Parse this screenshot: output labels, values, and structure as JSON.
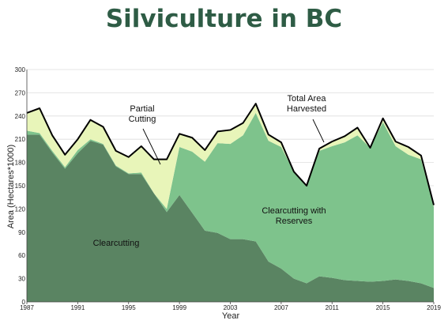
{
  "colors": {
    "title": "#2e5c45",
    "clearcutting": "#5a8462",
    "reserves": "#7ec38c",
    "partial": "#e8f5b9",
    "total_line": "#000000",
    "grid": "#dddddd"
  },
  "chart_data": {
    "type": "area",
    "title": "Silviculture in BC",
    "xlabel": "Year",
    "ylabel": "Area (Hectares*1000)",
    "xlim": [
      1987,
      2019
    ],
    "ylim": [
      0,
      300
    ],
    "xticks": [
      "1987",
      "1991",
      "1995",
      "1999",
      "2003",
      "2007",
      "2011",
      "2015",
      "2019"
    ],
    "yticks": [
      "0",
      "30",
      "60",
      "90",
      "120",
      "150",
      "180",
      "210",
      "240",
      "270",
      "300"
    ],
    "grid": true,
    "stacked": true,
    "x": [
      1987,
      1988,
      1989,
      1990,
      1991,
      1992,
      1993,
      1994,
      1995,
      1996,
      1997,
      1998,
      1999,
      2000,
      2001,
      2002,
      2003,
      2004,
      2005,
      2006,
      2007,
      2008,
      2009,
      2010,
      2011,
      2012,
      2013,
      2014,
      2015,
      2016,
      2017,
      2018,
      2019
    ],
    "series": [
      {
        "name": "Clearcutting",
        "values": [
          216,
          216,
          193,
          172,
          192,
          208,
          203,
          175,
          165,
          165,
          140,
          116,
          138,
          115,
          92,
          89,
          81,
          81,
          78,
          52,
          43,
          30,
          24,
          33,
          31,
          28,
          27,
          26,
          27,
          29,
          27,
          24,
          18
        ]
      },
      {
        "name": "Clearcutting with Reserves",
        "values": [
          5,
          2,
          2,
          2,
          4,
          2,
          1,
          1,
          1,
          2,
          0,
          4,
          62,
          79,
          89,
          116,
          123,
          134,
          166,
          156,
          157,
          138,
          125,
          162,
          170,
          178,
          188,
          173,
          205,
          172,
          163,
          160,
          105
        ]
      },
      {
        "name": "Partial Cutting",
        "values": [
          23,
          32,
          20,
          16,
          14,
          25,
          22,
          19,
          21,
          34,
          44,
          64,
          17,
          18,
          15,
          15,
          18,
          16,
          12,
          8,
          6,
          0,
          1,
          3,
          6,
          8,
          10,
          0,
          5,
          6,
          10,
          5,
          2
        ]
      }
    ],
    "total": {
      "name": "Total Area Harvested",
      "values": [
        244,
        250,
        215,
        190,
        210,
        235,
        226,
        195,
        187,
        201,
        184,
        184,
        217,
        212,
        196,
        220,
        222,
        231,
        256,
        216,
        206,
        168,
        150,
        198,
        207,
        214,
        225,
        199,
        237,
        207,
        200,
        189,
        125
      ]
    },
    "annotations": {
      "partial": [
        "Partial",
        "Cutting"
      ],
      "total": [
        "Total Area",
        "Harvested"
      ],
      "reserves": [
        "Clearcutting with",
        "Reserves"
      ],
      "clear": [
        "Clearcutting"
      ]
    }
  }
}
